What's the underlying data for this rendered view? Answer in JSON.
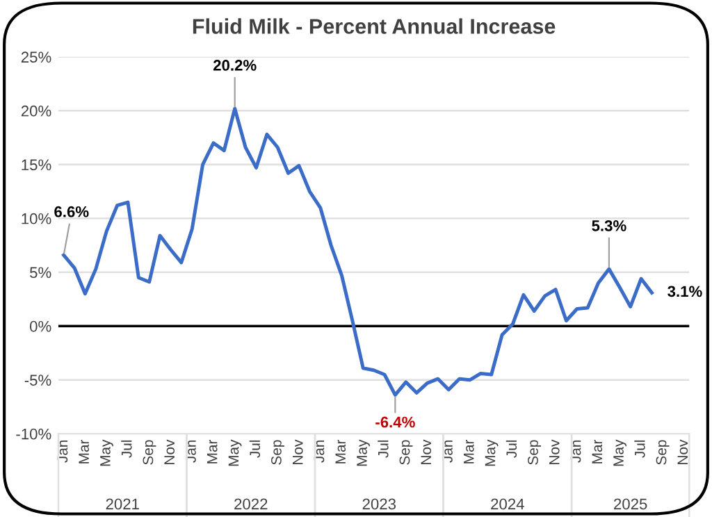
{
  "chart_data": {
    "type": "line",
    "title": "Fluid Milk - Percent Annual Increase",
    "categories": [
      "Jan",
      null,
      "Mar",
      null,
      "May",
      null,
      "Jul",
      null,
      "Sep",
      null,
      "Nov",
      null,
      "Jan",
      null,
      "Mar",
      null,
      "May",
      null,
      "Jul",
      null,
      "Sep",
      null,
      "Nov",
      null,
      "Jan",
      null,
      "Mar",
      null,
      "May",
      null,
      "Jul",
      null,
      "Sep",
      null,
      "Nov",
      null,
      "Jan",
      null,
      "Mar",
      null,
      "May",
      null,
      "Jul",
      null,
      "Sep",
      null,
      "Nov",
      null,
      "Jan",
      null,
      "Mar",
      null,
      "May",
      null,
      "Jul",
      null,
      "Sep",
      null,
      "Nov"
    ],
    "series": [
      {
        "color": "#3a6cc8",
        "values": [
          6.6,
          5.4,
          3.0,
          5.3,
          8.8,
          11.2,
          11.5,
          4.5,
          4.1,
          8.4,
          7.1,
          5.9,
          9.0,
          15.0,
          17.0,
          16.3,
          20.2,
          16.6,
          14.7,
          17.8,
          16.6,
          14.2,
          14.9,
          12.5,
          11.0,
          7.5,
          4.7,
          0.5,
          -3.9,
          -4.1,
          -4.5,
          -6.4,
          -5.2,
          -6.2,
          -5.3,
          -4.9,
          -5.9,
          -4.9,
          -5.0,
          -4.4,
          -4.5,
          -0.8,
          0.2,
          2.9,
          1.4,
          2.8,
          3.4,
          0.5,
          1.6,
          1.7,
          4.0,
          5.3,
          3.6,
          1.8,
          4.4,
          3.1,
          null,
          null,
          null
        ],
        "value_labels": [
          "6.6%",
          null,
          null,
          null,
          null,
          null,
          null,
          null,
          null,
          null,
          null,
          null,
          null,
          null,
          null,
          null,
          "20.2%",
          null,
          null,
          null,
          null,
          null,
          null,
          null,
          null,
          null,
          null,
          null,
          null,
          null,
          null,
          "-6.4%",
          null,
          null,
          null,
          null,
          null,
          null,
          null,
          null,
          null,
          null,
          null,
          null,
          null,
          null,
          null,
          null,
          null,
          null,
          null,
          "5.3%",
          null,
          null,
          null,
          "3.1%",
          null,
          null,
          null
        ]
      }
    ],
    "annotations": [
      "2021",
      "2022",
      "2023",
      "2024",
      "2025"
    ],
    "ylim": [
      -10,
      25
    ],
    "yticks": [
      {
        "value": -10,
        "label": "-10%"
      },
      {
        "value": -5,
        "label": "-5%"
      },
      {
        "value": 0,
        "label": "0%"
      },
      {
        "value": 5,
        "label": "5%"
      },
      {
        "value": 10,
        "label": "10%"
      },
      {
        "value": 15,
        "label": "15%"
      },
      {
        "value": 20,
        "label": "20%"
      },
      {
        "value": 25,
        "label": "25%"
      }
    ],
    "ref_lines": [
      {
        "axis": "y",
        "value": 0,
        "color": "#000000"
      }
    ],
    "grid": "y",
    "marker": "none",
    "line_style": "solid"
  }
}
